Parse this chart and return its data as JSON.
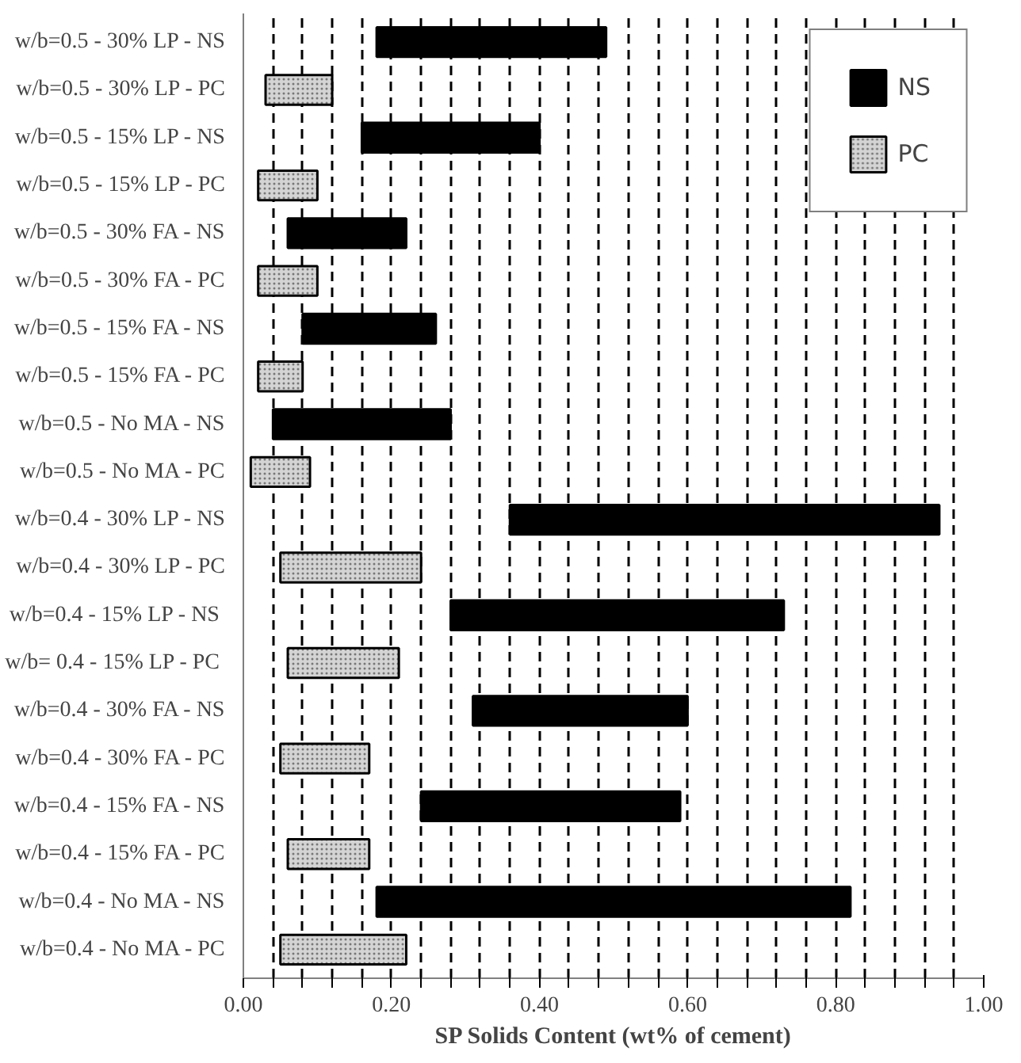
{
  "chart_data": {
    "type": "bar",
    "orientation": "horizontal",
    "xlabel": "SP Solids Content (wt% of cement)",
    "categories": [
      "w/b=0.5 - 30% LP - NS",
      "w/b=0.5 - 30% LP - PC",
      "w/b=0.5 - 15% LP - NS",
      "w/b=0.5 - 15% LP - PC",
      "w/b=0.5 - 30% FA - NS",
      "w/b=0.5 - 30% FA - PC",
      "w/b=0.5 - 15% FA - NS",
      "w/b=0.5 - 15% FA - PC",
      "w/b=0.5 - No MA - NS",
      "w/b=0.5 - No MA - PC",
      "w/b=0.4 - 30% LP - NS",
      "w/b=0.4 - 30% LP - PC",
      "w/b=0.4 - 15%  LP - NS",
      "w/b= 0.4 - 15%  LP - PC",
      "w/b=0.4 - 30% FA - NS",
      "w/b=0.4 - 30% FA - PC",
      "w/b=0.4 - 15% FA - NS",
      "w/b=0.4 - 15% FA - PC",
      "w/b=0.4 - No MA - NS",
      "w/b=0.4 - No MA - PC"
    ],
    "series": [
      {
        "name": "NS",
        "color": "#000000",
        "values": [
          0.31,
          null,
          0.24,
          null,
          0.16,
          null,
          0.18,
          null,
          0.24,
          null,
          0.58,
          null,
          0.45,
          null,
          0.29,
          null,
          0.35,
          null,
          0.64,
          null
        ],
        "base": [
          0.18,
          null,
          0.16,
          null,
          0.06,
          null,
          0.08,
          null,
          0.04,
          null,
          0.36,
          null,
          0.28,
          null,
          0.31,
          null,
          0.24,
          null,
          0.18,
          null
        ]
      },
      {
        "name": "PC",
        "color": "#d4d4d4",
        "values": [
          null,
          0.09,
          null,
          0.08,
          null,
          0.08,
          null,
          0.06,
          null,
          0.08,
          null,
          0.19,
          null,
          0.15,
          null,
          0.12,
          null,
          0.11,
          null,
          0.17
        ],
        "base": [
          null,
          0.03,
          null,
          0.02,
          null,
          0.02,
          null,
          0.02,
          null,
          0.01,
          null,
          0.05,
          null,
          0.06,
          null,
          0.05,
          null,
          0.06,
          null,
          0.05
        ]
      }
    ],
    "xlim": [
      0,
      1
    ],
    "xticks": [
      {
        "value": 0,
        "label": "0.00"
      },
      {
        "value": 0.04,
        "label": null
      },
      {
        "value": 0.08,
        "label": null
      },
      {
        "value": 0.12,
        "label": null
      },
      {
        "value": 0.16,
        "label": null
      },
      {
        "value": 0.2,
        "label": "0.20"
      },
      {
        "value": 0.24,
        "label": null
      },
      {
        "value": 0.28,
        "label": null
      },
      {
        "value": 0.32,
        "label": null
      },
      {
        "value": 0.36,
        "label": null
      },
      {
        "value": 0.4,
        "label": "0.40"
      },
      {
        "value": 0.44,
        "label": null
      },
      {
        "value": 0.48,
        "label": null
      },
      {
        "value": 0.52,
        "label": null
      },
      {
        "value": 0.56,
        "label": null
      },
      {
        "value": 0.6,
        "label": "0.60"
      },
      {
        "value": 0.64,
        "label": null
      },
      {
        "value": 0.68,
        "label": null
      },
      {
        "value": 0.72,
        "label": null
      },
      {
        "value": 0.76,
        "label": null
      },
      {
        "value": 0.8,
        "label": "0.80"
      },
      {
        "value": 0.84,
        "label": null
      },
      {
        "value": 0.88,
        "label": null
      },
      {
        "value": 0.92,
        "label": null
      },
      {
        "value": 0.96,
        "label": null
      },
      {
        "value": 1,
        "label": "1.00"
      }
    ],
    "grid": "x",
    "legend": "top right"
  }
}
